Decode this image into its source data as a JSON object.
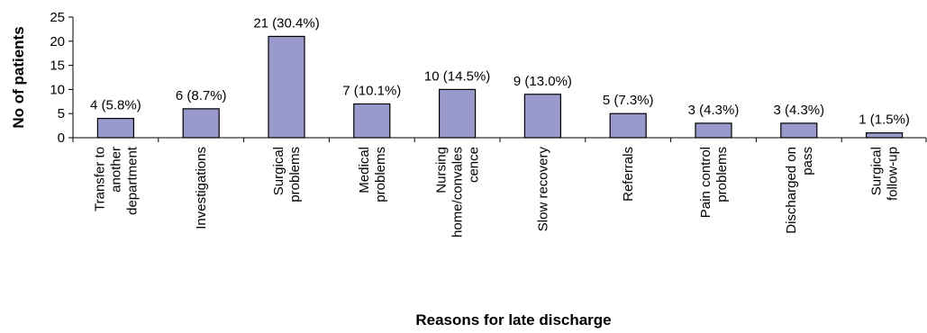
{
  "chart_data": {
    "type": "bar",
    "title": "",
    "xlabel": "Reasons for late discharge",
    "ylabel": "No of patients",
    "ylim": [
      0,
      25
    ],
    "yticks": [
      0,
      5,
      10,
      15,
      20,
      25
    ],
    "grid": false,
    "legend": "none",
    "bar_color": "#9999cc",
    "bar_edge_color": "#000000",
    "categories": [
      [
        "Transfer to",
        "another",
        "department"
      ],
      [
        "Investigations"
      ],
      [
        "Surgical",
        "problems"
      ],
      [
        "Medical",
        "problems"
      ],
      [
        "Nursing",
        "home/convales",
        "cence"
      ],
      [
        "Slow recovery"
      ],
      [
        "Referrals"
      ],
      [
        "Pain control",
        "problems"
      ],
      [
        "Discharged on",
        "pass"
      ],
      [
        "Surgical",
        "follow-up"
      ]
    ],
    "values": [
      4,
      6,
      21,
      7,
      10,
      9,
      5,
      3,
      3,
      1
    ],
    "data_labels": [
      "4 (5.8%)",
      "6 (8.7%)",
      "21 (30.4%)",
      "7 (10.1%)",
      "10 (14.5%)",
      "9 (13.0%)",
      "5 (7.3%)",
      "3 (4.3%)",
      "3 (4.3%)",
      "1 (1.5%)"
    ]
  }
}
